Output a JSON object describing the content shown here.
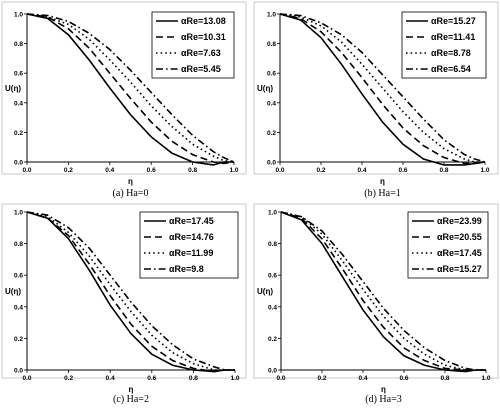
{
  "chart_data": [
    {
      "type": "line",
      "caption": "(a) Ha=0",
      "xlabel": "η",
      "ylabel": "U(η)",
      "xlim": [
        0,
        1
      ],
      "ylim": [
        0,
        1
      ],
      "xticks": [
        "0.0",
        "0.2",
        "0.4",
        "0.6",
        "0.8",
        "1.0"
      ],
      "yticks": [
        "0.0",
        "0.2",
        "0.4",
        "0.6",
        "0.8",
        "1.0"
      ],
      "legend_position": "top-right",
      "series": [
        {
          "name": "αRe=13.08",
          "style": "solid",
          "x": [
            0,
            0.1,
            0.2,
            0.3,
            0.4,
            0.5,
            0.6,
            0.7,
            0.8,
            0.9,
            0.95,
            1.0
          ],
          "values": [
            1.0,
            0.97,
            0.86,
            0.69,
            0.5,
            0.32,
            0.17,
            0.06,
            0.0,
            -0.02,
            0.0,
            0.0
          ]
        },
        {
          "name": "αRe=10.31",
          "style": "dash",
          "x": [
            0,
            0.1,
            0.2,
            0.3,
            0.4,
            0.5,
            0.6,
            0.7,
            0.8,
            0.9,
            0.95,
            1.0
          ],
          "values": [
            1.0,
            0.98,
            0.9,
            0.77,
            0.6,
            0.43,
            0.27,
            0.14,
            0.05,
            0.0,
            -0.01,
            0.0
          ]
        },
        {
          "name": "αRe=7.63",
          "style": "dot",
          "x": [
            0,
            0.1,
            0.2,
            0.3,
            0.4,
            0.5,
            0.6,
            0.7,
            0.8,
            0.9,
            0.95,
            1.0
          ],
          "values": [
            1.0,
            0.98,
            0.93,
            0.83,
            0.69,
            0.54,
            0.38,
            0.24,
            0.12,
            0.04,
            0.01,
            0.0
          ]
        },
        {
          "name": "αRe=5.45",
          "style": "dashdot",
          "x": [
            0,
            0.1,
            0.2,
            0.3,
            0.4,
            0.5,
            0.6,
            0.7,
            0.8,
            0.9,
            0.95,
            1.0
          ],
          "values": [
            1.0,
            0.99,
            0.95,
            0.87,
            0.76,
            0.62,
            0.47,
            0.32,
            0.18,
            0.07,
            0.03,
            0.0
          ]
        }
      ]
    },
    {
      "type": "line",
      "caption": "(b) Ha=1",
      "xlabel": "η",
      "ylabel": "U(η)",
      "xlim": [
        0,
        1
      ],
      "ylim": [
        0,
        1
      ],
      "xticks": [
        "0.0",
        "0.2",
        "0.4",
        "0.6",
        "0.8",
        "1.0"
      ],
      "yticks": [
        "0.0",
        "0.2",
        "0.4",
        "0.6",
        "0.8",
        "1.0"
      ],
      "legend_position": "top-right",
      "series": [
        {
          "name": "αRe=15.27",
          "style": "solid",
          "x": [
            0,
            0.1,
            0.2,
            0.3,
            0.4,
            0.5,
            0.6,
            0.7,
            0.8,
            0.9,
            0.95,
            1.0
          ],
          "values": [
            1.0,
            0.96,
            0.84,
            0.66,
            0.46,
            0.27,
            0.12,
            0.02,
            -0.02,
            -0.02,
            -0.01,
            0.0
          ]
        },
        {
          "name": "αRe=11.41",
          "style": "dash",
          "x": [
            0,
            0.1,
            0.2,
            0.3,
            0.4,
            0.5,
            0.6,
            0.7,
            0.8,
            0.9,
            0.95,
            1.0
          ],
          "values": [
            1.0,
            0.97,
            0.88,
            0.74,
            0.57,
            0.39,
            0.23,
            0.11,
            0.03,
            -0.01,
            -0.01,
            0.0
          ]
        },
        {
          "name": "αRe=8.78",
          "style": "dot",
          "x": [
            0,
            0.1,
            0.2,
            0.3,
            0.4,
            0.5,
            0.6,
            0.7,
            0.8,
            0.9,
            0.95,
            1.0
          ],
          "values": [
            1.0,
            0.98,
            0.92,
            0.81,
            0.66,
            0.5,
            0.34,
            0.2,
            0.09,
            0.02,
            0.0,
            0.0
          ]
        },
        {
          "name": "αRe=6.54",
          "style": "dashdot",
          "x": [
            0,
            0.1,
            0.2,
            0.3,
            0.4,
            0.5,
            0.6,
            0.7,
            0.8,
            0.9,
            0.95,
            1.0
          ],
          "values": [
            1.0,
            0.99,
            0.94,
            0.86,
            0.74,
            0.59,
            0.44,
            0.29,
            0.15,
            0.05,
            0.02,
            0.0
          ]
        }
      ]
    },
    {
      "type": "line",
      "caption": "(c) Ha=2",
      "xlabel": "η",
      "ylabel": "U(η)",
      "xlim": [
        0,
        1
      ],
      "ylim": [
        0,
        1
      ],
      "xticks": [
        "0.0",
        "0.2",
        "0.4",
        "0.6",
        "0.8",
        "1.0"
      ],
      "yticks": [
        "0.0",
        "0.2",
        "0.4",
        "0.6",
        "0.8",
        "1.0"
      ],
      "legend_position": "top-right",
      "series": [
        {
          "name": "αRe=17.45",
          "style": "solid",
          "x": [
            0,
            0.1,
            0.2,
            0.3,
            0.4,
            0.5,
            0.6,
            0.7,
            0.8,
            0.9,
            0.95,
            1.0
          ],
          "values": [
            1.0,
            0.96,
            0.83,
            0.63,
            0.41,
            0.23,
            0.1,
            0.03,
            0.0,
            -0.01,
            0.0,
            0.0
          ]
        },
        {
          "name": "αRe=14.76",
          "style": "dash",
          "x": [
            0,
            0.1,
            0.2,
            0.3,
            0.4,
            0.5,
            0.6,
            0.7,
            0.8,
            0.9,
            0.95,
            1.0
          ],
          "values": [
            1.0,
            0.96,
            0.85,
            0.67,
            0.47,
            0.29,
            0.15,
            0.06,
            0.01,
            -0.01,
            0.0,
            0.0
          ]
        },
        {
          "name": "αRe=11.99",
          "style": "dot",
          "x": [
            0,
            0.1,
            0.2,
            0.3,
            0.4,
            0.5,
            0.6,
            0.7,
            0.8,
            0.9,
            0.95,
            1.0
          ],
          "values": [
            1.0,
            0.97,
            0.87,
            0.72,
            0.54,
            0.37,
            0.22,
            0.11,
            0.04,
            0.0,
            0.0,
            0.0
          ]
        },
        {
          "name": "αRe=9.8",
          "style": "dashdot",
          "x": [
            0,
            0.1,
            0.2,
            0.3,
            0.4,
            0.5,
            0.6,
            0.7,
            0.8,
            0.9,
            0.95,
            1.0
          ],
          "values": [
            1.0,
            0.98,
            0.9,
            0.77,
            0.6,
            0.43,
            0.28,
            0.16,
            0.07,
            0.02,
            0.0,
            0.0
          ]
        }
      ]
    },
    {
      "type": "line",
      "caption": "(d) Ha=3",
      "xlabel": "η",
      "ylabel": "U(η)",
      "xlim": [
        0,
        1
      ],
      "ylim": [
        0,
        1
      ],
      "xticks": [
        "0.0",
        "0.2",
        "0.4",
        "0.6",
        "0.8",
        "1.0"
      ],
      "yticks": [
        "0.0",
        "0.2",
        "0.4",
        "0.6",
        "0.8",
        "1.0"
      ],
      "legend_position": "top-right",
      "series": [
        {
          "name": "αRe=23.99",
          "style": "solid",
          "x": [
            0,
            0.1,
            0.2,
            0.3,
            0.4,
            0.5,
            0.6,
            0.7,
            0.8,
            0.9,
            0.95,
            1.0
          ],
          "values": [
            1.0,
            0.95,
            0.8,
            0.59,
            0.38,
            0.21,
            0.09,
            0.03,
            0.0,
            -0.01,
            0.0,
            0.0
          ]
        },
        {
          "name": "αRe=20.55",
          "style": "dash",
          "x": [
            0,
            0.1,
            0.2,
            0.3,
            0.4,
            0.5,
            0.6,
            0.7,
            0.8,
            0.9,
            0.95,
            1.0
          ],
          "values": [
            1.0,
            0.96,
            0.83,
            0.64,
            0.44,
            0.27,
            0.14,
            0.06,
            0.01,
            0.0,
            0.0,
            0.0
          ]
        },
        {
          "name": "αRe=17.45",
          "style": "dot",
          "x": [
            0,
            0.1,
            0.2,
            0.3,
            0.4,
            0.5,
            0.6,
            0.7,
            0.8,
            0.9,
            0.95,
            1.0
          ],
          "values": [
            1.0,
            0.97,
            0.86,
            0.69,
            0.51,
            0.34,
            0.2,
            0.1,
            0.03,
            0.0,
            0.0,
            0.0
          ]
        },
        {
          "name": "αRe=15.27",
          "style": "dashdot",
          "x": [
            0,
            0.1,
            0.2,
            0.3,
            0.4,
            0.5,
            0.6,
            0.7,
            0.8,
            0.9,
            0.95,
            1.0
          ],
          "values": [
            1.0,
            0.97,
            0.88,
            0.73,
            0.56,
            0.39,
            0.25,
            0.14,
            0.06,
            0.01,
            0.0,
            0.0
          ]
        }
      ]
    }
  ]
}
